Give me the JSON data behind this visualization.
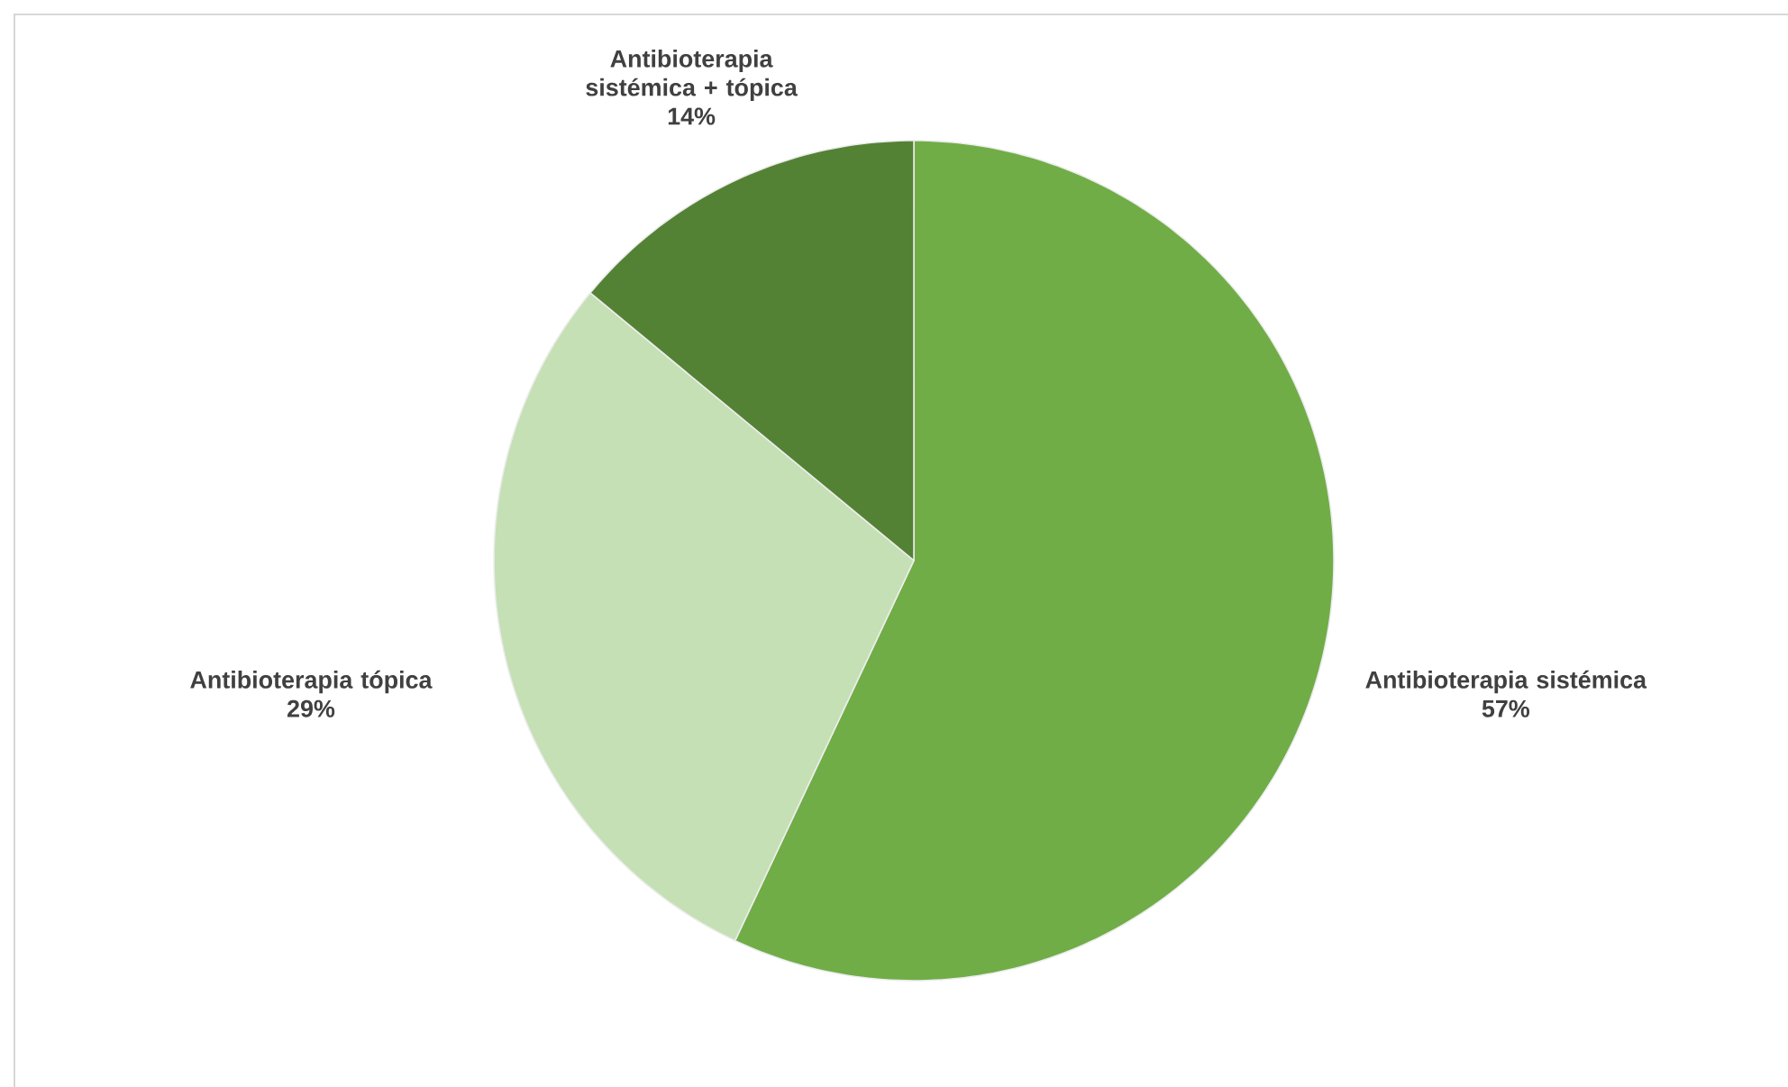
{
  "chart_data": {
    "type": "pie",
    "categories": [
      "Antibioterapia sistémica",
      "Antibioterapia tópica",
      "Antibioterapia sistémica + tópica"
    ],
    "values": [
      57,
      29,
      14
    ],
    "value_labels": [
      "57%",
      "29%",
      "14%"
    ],
    "colors": [
      "#70ad47",
      "#c5e0b4",
      "#548235"
    ]
  }
}
